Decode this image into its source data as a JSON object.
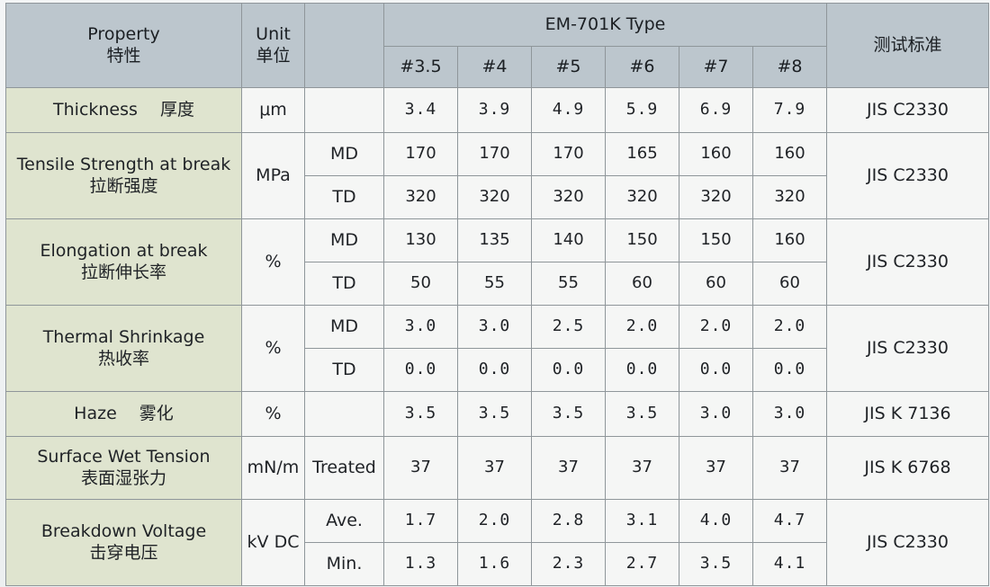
{
  "header": {
    "property_en": "Property",
    "property_zh": "特性",
    "unit_en": "Unit",
    "unit_zh": "单位",
    "type_title": "EM-701K Type",
    "standard": "测试标准",
    "grades": [
      "#3.5",
      "#4",
      "#5",
      "#6",
      "#7",
      "#8"
    ]
  },
  "rows": {
    "thickness": {
      "name": "Thickness　 厚度",
      "unit": "μm",
      "values": [
        "3.4",
        "3.9",
        "4.9",
        "5.9",
        "6.9",
        "7.9"
      ],
      "standard": "JIS C2330"
    },
    "tensile": {
      "name_en": "Tensile Strength at break",
      "name_zh": "拉断强度",
      "unit": "MPa",
      "md_label": "MD",
      "td_label": "TD",
      "md": [
        "170",
        "170",
        "170",
        "165",
        "160",
        "160"
      ],
      "td": [
        "320",
        "320",
        "320",
        "320",
        "320",
        "320"
      ],
      "standard": "JIS C2330"
    },
    "elongation": {
      "name_en": "Elongation at break",
      "name_zh": "拉断伸长率",
      "unit": "%",
      "md_label": "MD",
      "td_label": "TD",
      "md": [
        "130",
        "135",
        "140",
        "150",
        "150",
        "160"
      ],
      "td": [
        "50",
        "55",
        "55",
        "60",
        "60",
        "60"
      ],
      "standard": "JIS C2330"
    },
    "shrinkage": {
      "name_en": "Thermal Shrinkage",
      "name_zh": "热收率",
      "unit": "%",
      "md_label": "MD",
      "td_label": "TD",
      "md": [
        "3.0",
        "3.0",
        "2.5",
        "2.0",
        "2.0",
        "2.0"
      ],
      "td": [
        "0.0",
        "0.0",
        "0.0",
        "0.0",
        "0.0",
        "0.0"
      ],
      "standard": "JIS C2330"
    },
    "haze": {
      "name": "Haze　 雾化",
      "unit": "%",
      "values": [
        "3.5",
        "3.5",
        "3.5",
        "3.5",
        "3.0",
        "3.0"
      ],
      "standard": "JIS K 7136"
    },
    "wet_tension": {
      "name_en": "Surface Wet Tension",
      "name_zh": "表面湿张力",
      "unit": "mN/m",
      "condition": "Treated",
      "values": [
        "37",
        "37",
        "37",
        "37",
        "37",
        "37"
      ],
      "standard": "JIS K 6768"
    },
    "breakdown": {
      "name_en": "Breakdown Voltage",
      "name_zh": "击穿电压",
      "unit": "kV DC",
      "ave_label": "Ave.",
      "min_label": "Min.",
      "ave": [
        "1.7",
        "2.0",
        "2.8",
        "3.1",
        "4.0",
        "4.7"
      ],
      "min": [
        "1.3",
        "1.6",
        "2.3",
        "2.7",
        "3.5",
        "4.1"
      ],
      "standard": "JIS C2330"
    }
  }
}
